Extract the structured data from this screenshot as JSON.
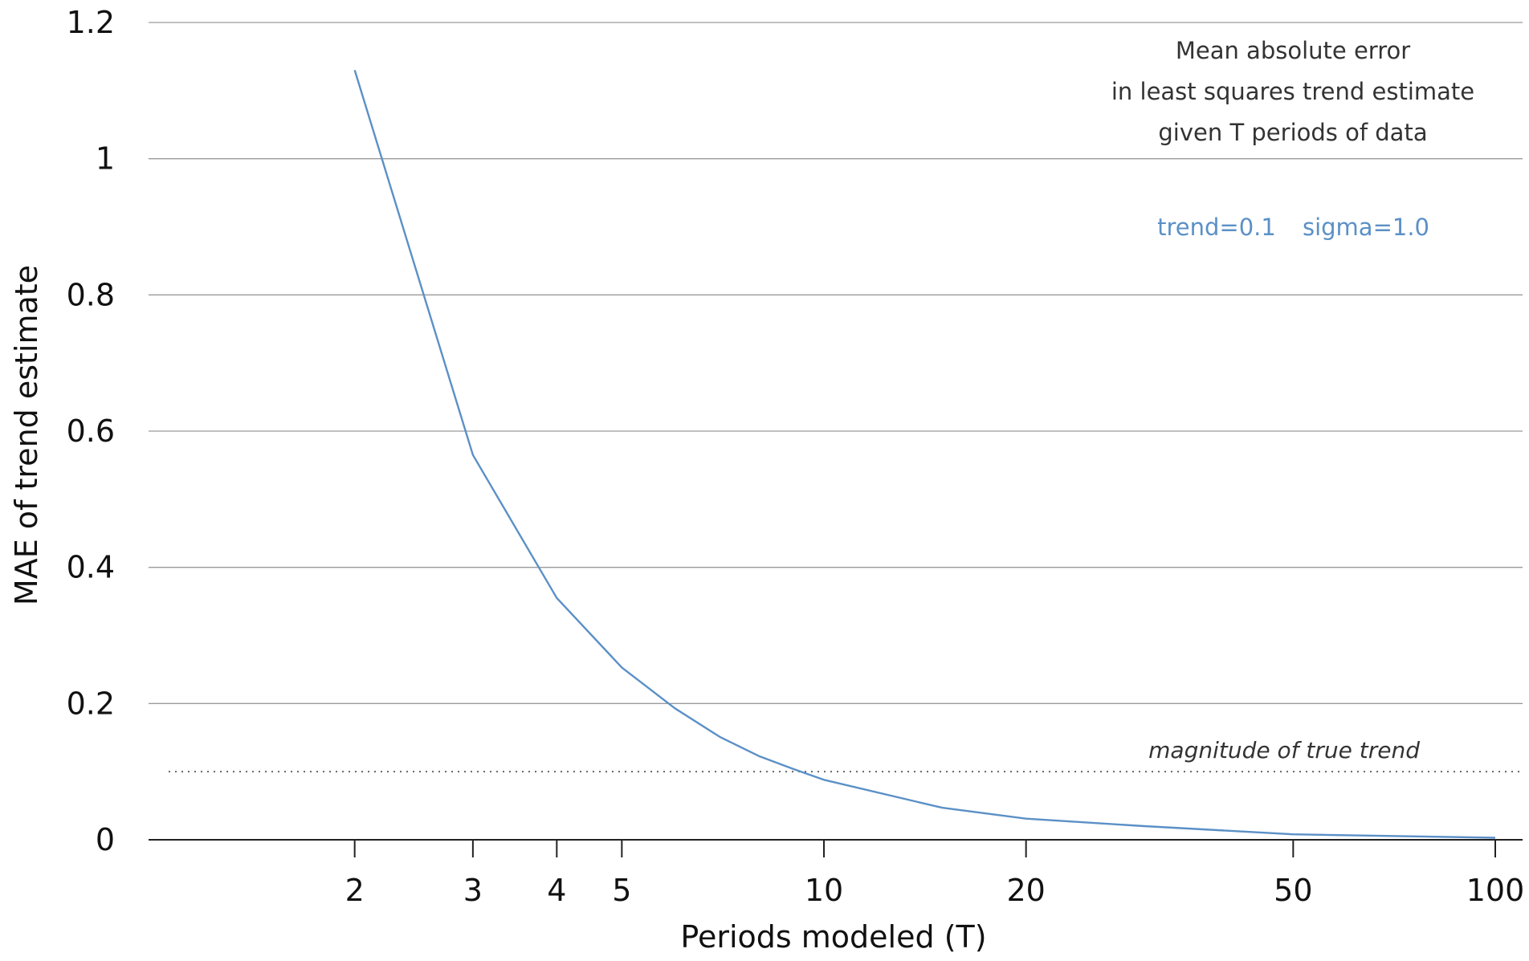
{
  "chart_data": {
    "type": "line",
    "title_lines": [
      "Mean absolute error",
      "in least squares trend estimate",
      "given T periods of data"
    ],
    "params": [
      "trend=0.1",
      "sigma=1.0"
    ],
    "xlabel": "Periods modeled (T)",
    "ylabel": "MAE of trend estimate",
    "x_scale": "log",
    "xlim": [
      1,
      100
    ],
    "ylim": [
      0,
      1.2
    ],
    "x_ticks": [
      2,
      3,
      4,
      5,
      10,
      20,
      50,
      100
    ],
    "x_tick_labels": [
      "2",
      "3",
      "4",
      "5",
      "10",
      "20",
      "50",
      "100"
    ],
    "y_ticks": [
      0,
      0.2,
      0.4,
      0.6,
      0.8,
      1,
      1.2
    ],
    "y_tick_labels": [
      "0",
      "0.2",
      "0.4",
      "0.6",
      "0.8",
      "1",
      "1.2"
    ],
    "grid": "horizontal",
    "series": [
      {
        "color": "#5b90c6",
        "x": [
          2,
          3,
          4,
          5,
          6,
          7,
          8,
          9,
          10,
          15,
          20,
          30,
          50,
          100
        ],
        "values": [
          1.13,
          0.565,
          0.355,
          0.253,
          0.193,
          0.151,
          0.123,
          0.104,
          0.088,
          0.047,
          0.031,
          0.02,
          0.008,
          0.003
        ]
      }
    ],
    "reference_line": {
      "y": 0.1,
      "style": "dotted",
      "label": "magnitude of true trend"
    }
  },
  "colors": {
    "series": "#5b90c6",
    "grid": "#9a9a9a",
    "axis": "#222222",
    "text": "#111111"
  }
}
